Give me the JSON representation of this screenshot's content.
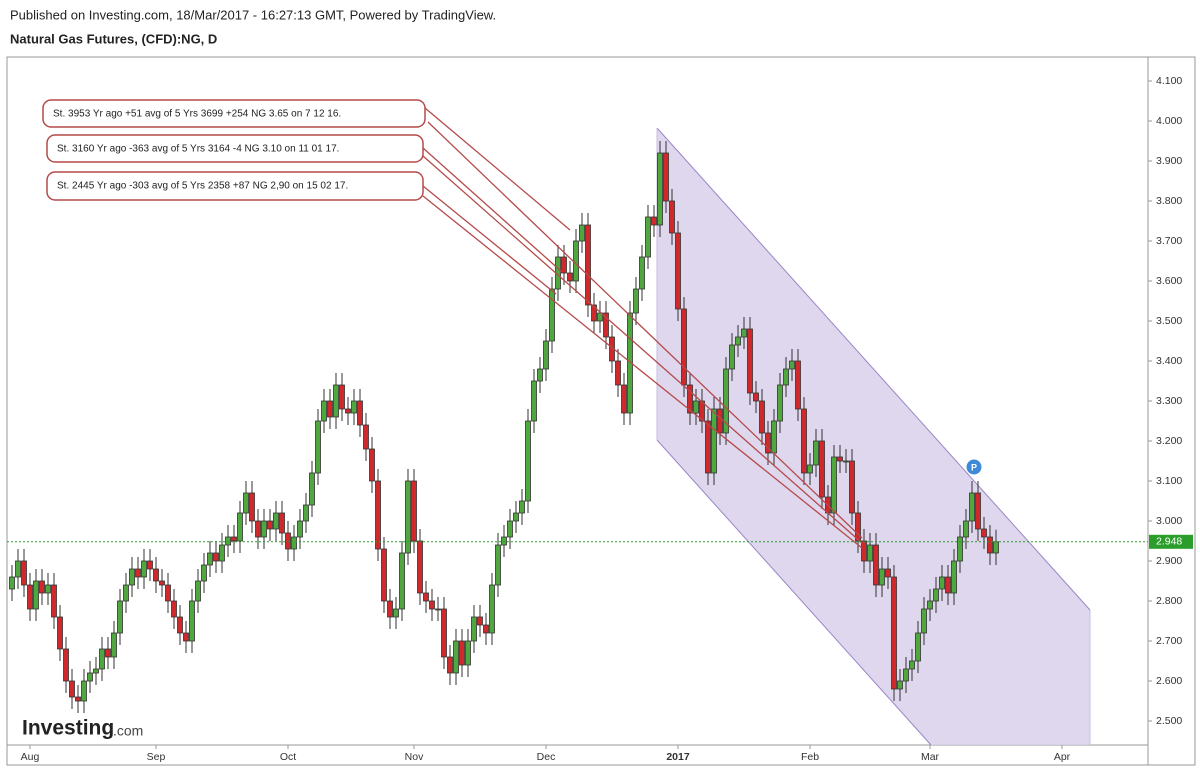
{
  "header": {
    "published": "Published on Investing.com, 18/Mar/2017 - 16:27:13 GMT, Powered by TradingView.",
    "instrument": "Natural Gas Futures, (CFD):NG, D"
  },
  "logo": {
    "brand": "Investing",
    "suffix": ".com"
  },
  "chart_data": {
    "type": "candlestick",
    "categories": [
      null,
      null,
      null,
      "Aug",
      null,
      null,
      null,
      null,
      null,
      null,
      null,
      null,
      null,
      null,
      null,
      null,
      null,
      null,
      null,
      null,
      null,
      null,
      null,
      null,
      "Sep",
      null,
      null,
      null,
      null,
      null,
      null,
      null,
      null,
      null,
      null,
      null,
      null,
      null,
      null,
      null,
      null,
      null,
      null,
      null,
      null,
      null,
      "Oct",
      null,
      null,
      null,
      null,
      null,
      null,
      null,
      null,
      null,
      null,
      null,
      null,
      null,
      null,
      null,
      null,
      null,
      null,
      null,
      null,
      "Nov",
      null,
      null,
      null,
      null,
      null,
      null,
      null,
      null,
      null,
      null,
      null,
      null,
      null,
      null,
      null,
      null,
      null,
      null,
      null,
      null,
      null,
      "Dec",
      null,
      null,
      null,
      null,
      null,
      null,
      null,
      null,
      null,
      null,
      null,
      null,
      null,
      null,
      null,
      null,
      null,
      null,
      null,
      null,
      null,
      "2017",
      null,
      null,
      null,
      null,
      null,
      null,
      null,
      null,
      null,
      null,
      null,
      null,
      null,
      null,
      null,
      null,
      null,
      null,
      null,
      null,
      null,
      "Feb",
      null,
      null,
      null,
      null,
      null,
      null,
      null,
      null,
      null,
      null,
      null,
      null,
      null,
      null,
      null,
      null,
      null,
      null,
      null,
      "Mar",
      null,
      null,
      null,
      null,
      null,
      null,
      null,
      null,
      null,
      null,
      null,
      null,
      null,
      null,
      null,
      null,
      null,
      null,
      null,
      null,
      null,
      "Apr"
    ],
    "open": [
      2.83,
      2.86,
      2.9,
      2.84,
      2.78,
      2.85,
      2.82,
      2.84,
      2.76,
      2.68,
      2.6,
      2.56,
      2.55,
      2.6,
      2.62,
      2.63,
      2.68,
      2.66,
      2.72,
      2.8,
      2.84,
      2.88,
      2.86,
      2.9,
      2.88,
      2.85,
      2.84,
      2.8,
      2.76,
      2.72,
      2.7,
      2.8,
      2.85,
      2.89,
      2.92,
      2.9,
      2.94,
      2.96,
      2.95,
      3.02,
      3.07,
      3.0,
      2.96,
      3.0,
      2.98,
      3.02,
      2.97,
      2.93,
      2.96,
      3.0,
      3.04,
      3.12,
      3.25,
      3.3,
      3.26,
      3.34,
      3.28,
      3.27,
      3.3,
      3.24,
      3.18,
      3.1,
      2.93,
      2.8,
      2.76,
      2.78,
      2.92,
      3.1,
      2.95,
      2.82,
      2.8,
      2.78,
      2.78,
      2.66,
      2.62,
      2.7,
      2.64,
      2.7,
      2.76,
      2.74,
      2.72,
      2.84,
      2.94,
      2.96,
      3.0,
      3.02,
      3.05,
      3.25,
      3.35,
      3.38,
      3.45,
      3.58,
      3.66,
      3.62,
      3.6,
      3.7,
      3.74,
      3.54,
      3.5,
      3.52,
      3.46,
      3.4,
      3.34,
      3.27,
      3.52,
      3.58,
      3.66,
      3.76,
      3.74,
      3.92,
      3.8,
      3.72,
      3.53,
      3.34,
      3.27,
      3.3,
      3.25,
      3.12,
      3.28,
      3.22,
      3.38,
      3.44,
      3.46,
      3.48,
      3.32,
      3.3,
      3.22,
      3.17,
      3.25,
      3.34,
      3.38,
      3.4,
      3.28,
      3.12,
      3.14,
      3.2,
      3.06,
      3.02,
      3.16,
      3.15,
      3.15,
      3.02,
      2.95,
      2.9,
      2.94,
      2.84,
      2.88,
      2.86,
      2.58,
      2.6,
      2.63,
      2.65,
      2.72,
      2.78,
      2.8,
      2.83,
      2.86,
      2.82,
      2.9,
      2.96,
      3.0,
      3.07,
      2.98,
      2.96,
      2.92,
      null,
      null,
      null,
      null,
      null,
      null,
      null,
      null,
      null,
      null,
      null
    ],
    "high": [
      2.89,
      2.93,
      2.93,
      2.87,
      2.88,
      2.88,
      2.87,
      2.87,
      2.79,
      2.71,
      2.63,
      2.59,
      2.63,
      2.65,
      2.66,
      2.71,
      2.71,
      2.75,
      2.83,
      2.87,
      2.91,
      2.91,
      2.93,
      2.93,
      2.91,
      2.88,
      2.87,
      2.83,
      2.79,
      2.75,
      2.83,
      2.88,
      2.92,
      2.95,
      2.95,
      2.97,
      2.99,
      2.99,
      3.05,
      3.1,
      3.1,
      3.03,
      3.03,
      3.03,
      3.05,
      3.05,
      3.0,
      2.99,
      3.03,
      3.07,
      3.15,
      3.28,
      3.33,
      3.33,
      3.37,
      3.37,
      3.31,
      3.33,
      3.33,
      3.27,
      3.21,
      3.13,
      2.96,
      2.83,
      2.81,
      2.95,
      3.13,
      3.13,
      2.98,
      2.85,
      2.83,
      2.81,
      2.81,
      2.69,
      2.73,
      2.73,
      2.73,
      2.79,
      2.79,
      2.77,
      2.87,
      2.97,
      2.99,
      3.03,
      3.05,
      3.08,
      3.28,
      3.38,
      3.41,
      3.48,
      3.61,
      3.69,
      3.69,
      3.65,
      3.73,
      3.77,
      3.77,
      3.57,
      3.55,
      3.55,
      3.49,
      3.43,
      3.37,
      3.55,
      3.61,
      3.69,
      3.79,
      3.79,
      3.95,
      3.95,
      3.83,
      3.75,
      3.56,
      3.37,
      3.33,
      3.33,
      3.28,
      3.31,
      3.31,
      3.41,
      3.47,
      3.49,
      3.51,
      3.51,
      3.35,
      3.33,
      3.25,
      3.28,
      3.37,
      3.41,
      3.43,
      3.43,
      3.31,
      3.17,
      3.23,
      3.23,
      3.09,
      3.19,
      3.19,
      3.18,
      3.18,
      3.05,
      2.98,
      2.97,
      2.97,
      2.91,
      2.91,
      2.89,
      2.63,
      2.66,
      2.68,
      2.75,
      2.81,
      2.83,
      2.86,
      2.89,
      2.89,
      2.93,
      2.99,
      3.03,
      3.1,
      3.1,
      3.01,
      2.99,
      2.978,
      null,
      null,
      null,
      null,
      null,
      null,
      null,
      null,
      null,
      null,
      null
    ],
    "low": [
      2.8,
      2.83,
      2.81,
      2.75,
      2.75,
      2.79,
      2.79,
      2.73,
      2.65,
      2.57,
      2.53,
      2.52,
      2.52,
      2.57,
      2.59,
      2.6,
      2.63,
      2.63,
      2.69,
      2.77,
      2.81,
      2.83,
      2.83,
      2.85,
      2.82,
      2.81,
      2.77,
      2.73,
      2.69,
      2.67,
      2.67,
      2.77,
      2.82,
      2.86,
      2.87,
      2.87,
      2.91,
      2.92,
      2.92,
      2.99,
      2.97,
      2.93,
      2.93,
      2.95,
      2.95,
      2.94,
      2.9,
      2.9,
      2.93,
      2.97,
      3.01,
      3.09,
      3.22,
      3.23,
      3.23,
      3.25,
      3.24,
      3.24,
      3.21,
      3.15,
      3.07,
      2.9,
      2.77,
      2.73,
      2.73,
      2.75,
      2.89,
      2.92,
      2.79,
      2.77,
      2.75,
      2.75,
      2.63,
      2.59,
      2.59,
      2.61,
      2.61,
      2.67,
      2.71,
      2.69,
      2.69,
      2.81,
      2.91,
      2.93,
      2.97,
      2.99,
      3.02,
      3.22,
      3.32,
      3.35,
      3.42,
      3.55,
      3.59,
      3.57,
      3.57,
      3.67,
      3.51,
      3.47,
      3.47,
      3.43,
      3.37,
      3.31,
      3.24,
      3.24,
      3.49,
      3.55,
      3.63,
      3.71,
      3.71,
      3.77,
      3.69,
      3.5,
      3.31,
      3.24,
      3.24,
      3.22,
      3.09,
      3.09,
      3.19,
      3.19,
      3.35,
      3.41,
      3.43,
      3.29,
      3.27,
      3.19,
      3.14,
      3.14,
      3.22,
      3.31,
      3.35,
      3.25,
      3.09,
      3.09,
      3.11,
      3.03,
      2.99,
      2.99,
      3.12,
      3.12,
      2.99,
      2.92,
      2.87,
      2.87,
      2.81,
      2.81,
      2.83,
      2.55,
      2.55,
      2.57,
      2.6,
      2.62,
      2.69,
      2.75,
      2.77,
      2.8,
      2.79,
      2.79,
      2.87,
      2.93,
      2.97,
      2.95,
      2.93,
      2.89,
      2.89,
      null,
      null,
      null,
      null,
      null,
      null,
      null,
      null,
      null,
      null,
      null
    ],
    "close": [
      2.86,
      2.9,
      2.84,
      2.78,
      2.85,
      2.82,
      2.84,
      2.76,
      2.68,
      2.6,
      2.56,
      2.55,
      2.6,
      2.62,
      2.63,
      2.68,
      2.66,
      2.72,
      2.8,
      2.84,
      2.88,
      2.86,
      2.9,
      2.88,
      2.85,
      2.84,
      2.8,
      2.76,
      2.72,
      2.7,
      2.8,
      2.85,
      2.89,
      2.92,
      2.9,
      2.94,
      2.96,
      2.95,
      3.02,
      3.07,
      3.0,
      2.96,
      3.0,
      2.98,
      3.02,
      2.97,
      2.93,
      2.96,
      3.0,
      3.04,
      3.12,
      3.25,
      3.3,
      3.26,
      3.34,
      3.28,
      3.27,
      3.3,
      3.24,
      3.18,
      3.1,
      2.93,
      2.8,
      2.76,
      2.78,
      2.92,
      3.1,
      2.95,
      2.82,
      2.8,
      2.78,
      2.78,
      2.66,
      2.62,
      2.7,
      2.64,
      2.7,
      2.76,
      2.74,
      2.72,
      2.84,
      2.94,
      2.96,
      3.0,
      3.02,
      3.05,
      3.25,
      3.35,
      3.38,
      3.45,
      3.58,
      3.66,
      3.62,
      3.6,
      3.7,
      3.74,
      3.54,
      3.5,
      3.52,
      3.46,
      3.4,
      3.34,
      3.27,
      3.52,
      3.58,
      3.66,
      3.76,
      3.74,
      3.92,
      3.8,
      3.72,
      3.53,
      3.34,
      3.27,
      3.3,
      3.25,
      3.12,
      3.28,
      3.22,
      3.38,
      3.44,
      3.46,
      3.48,
      3.32,
      3.3,
      3.22,
      3.17,
      3.25,
      3.34,
      3.38,
      3.4,
      3.28,
      3.12,
      3.14,
      3.2,
      3.06,
      3.02,
      3.16,
      3.15,
      3.15,
      3.02,
      2.95,
      2.9,
      2.94,
      2.84,
      2.88,
      2.86,
      2.58,
      2.6,
      2.63,
      2.65,
      2.72,
      2.78,
      2.8,
      2.83,
      2.86,
      2.82,
      2.9,
      2.96,
      3.0,
      3.07,
      2.98,
      2.96,
      2.92,
      2.948,
      null,
      null,
      null,
      null,
      null,
      null,
      null,
      null,
      null,
      null,
      null
    ],
    "up_color": "#4fa83d",
    "down_color": "#d0282b",
    "price_color": "#2a9d2a",
    "ylim": [
      2.44,
      4.16
    ],
    "yticks": [
      {
        "value": 2.5,
        "label": "2.500"
      },
      {
        "value": 2.6,
        "label": "2.600"
      },
      {
        "value": 2.7,
        "label": "2.700"
      },
      {
        "value": 2.8,
        "label": "2.800"
      },
      {
        "value": 2.9,
        "label": "2.900"
      },
      {
        "value": 3.0,
        "label": "3.000"
      },
      {
        "value": 3.1,
        "label": "3.100"
      },
      {
        "value": 3.2,
        "label": "3.200"
      },
      {
        "value": 3.3,
        "label": "3.300"
      },
      {
        "value": 3.4,
        "label": "3.400"
      },
      {
        "value": 3.5,
        "label": "3.500"
      },
      {
        "value": 3.6,
        "label": "3.600"
      },
      {
        "value": 3.7,
        "label": "3.700"
      },
      {
        "value": 3.8,
        "label": "3.800"
      },
      {
        "value": 3.9,
        "label": "3.900"
      },
      {
        "value": 4.0,
        "label": "4.000"
      },
      {
        "value": 4.1,
        "label": "4.100"
      }
    ],
    "grid": false,
    "annotations": [
      "St. 3953 Yr ago +51 avg of 5 Yrs 3699 +254 NG 3.65 on 7 12 16.",
      "St. 3160 Yr ago -363 avg of 5 Yrs 3164 -4 NG 3.10 on 11 01 17.",
      "St. 2445 Yr ago -303 avg of 5 Yrs 2358 +87 NG 2,90 on 15 02 17."
    ],
    "marker": "P"
  }
}
